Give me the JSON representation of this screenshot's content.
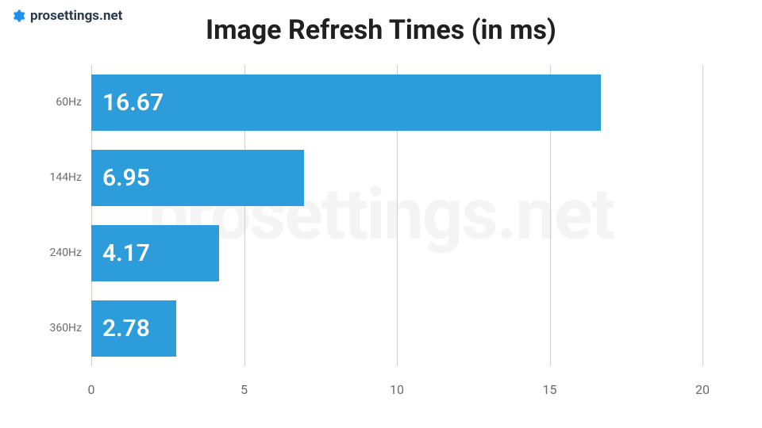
{
  "logo": {
    "text": "prosettings.net",
    "text_color": "#2a3a4a",
    "icon_color": "#1f8ff2"
  },
  "watermark": {
    "text": "prosettings.net",
    "color": "#f4f4f4"
  },
  "chart": {
    "type": "horizontal-bar",
    "title": "Image Refresh Times (in ms)",
    "title_fontsize": 34,
    "title_color": "#202020",
    "background_color": "#ffffff",
    "x_axis": {
      "min": 0,
      "max": 20,
      "tick_step": 5,
      "ticks": [
        0,
        5,
        10,
        15,
        20
      ],
      "tick_label_color": "#6b6b6b",
      "tick_label_fontsize": 16,
      "gridline_color": "#cfcfcf",
      "gridline_width": 1
    },
    "y_axis": {
      "label_color": "#6b6b6b",
      "label_fontsize": 14
    },
    "bars": {
      "color": "#2d9cdb",
      "value_text_color": "#ffffff",
      "value_fontsize": 30,
      "bar_height_ratio": 0.74,
      "gap_ratio": 0.26
    },
    "categories": [
      "60Hz",
      "144Hz",
      "240Hz",
      "360Hz"
    ],
    "values": [
      16.67,
      6.95,
      4.17,
      2.78
    ],
    "value_labels": [
      "16.67",
      "6.95",
      "4.17",
      "2.78"
    ]
  }
}
